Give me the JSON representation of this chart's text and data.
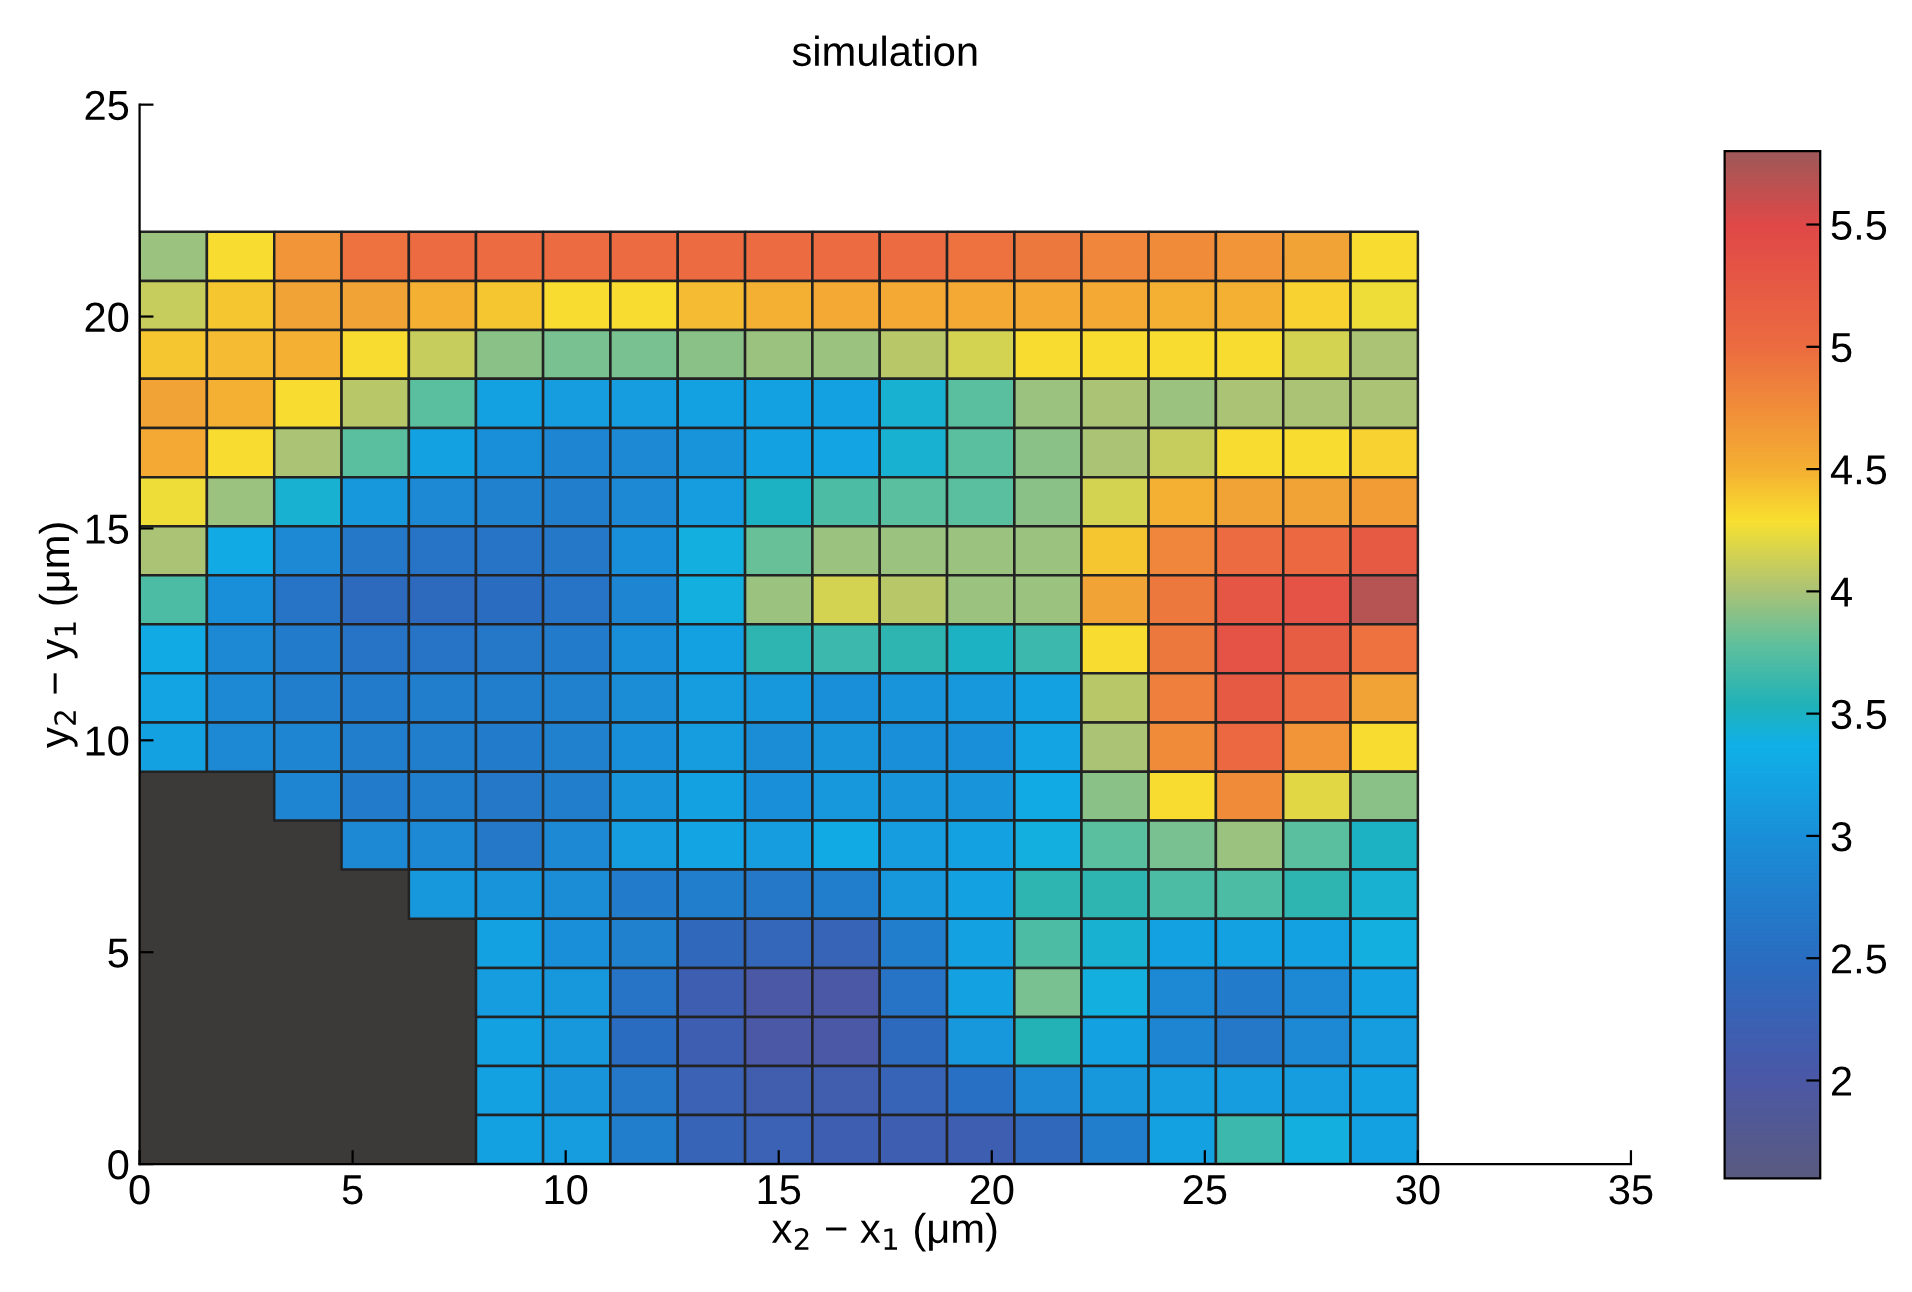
{
  "chart_data": {
    "type": "heatmap",
    "title": "simulation",
    "xlabel": "x$_{2}$ − x$_{1}$ (μm)",
    "ylabel": "y$_{2}$ − y$_{1}$ (μm)",
    "x": [
      0.79,
      2.37,
      3.95,
      5.53,
      7.11,
      8.68,
      10.26,
      11.84,
      13.42,
      15,
      16.58,
      18.16,
      19.74,
      21.32,
      22.89,
      24.47,
      26.05,
      27.63,
      29.21
    ],
    "y": [
      21.42,
      20.26,
      19.11,
      17.95,
      16.79,
      15.63,
      14.47,
      13.32,
      12.16,
      11,
      9.84,
      8.68,
      7.53,
      6.37,
      5.21,
      4.05,
      2.89,
      1.74,
      0.58
    ],
    "xlim": [
      0,
      35
    ],
    "xticks": [
      0,
      5,
      10,
      15,
      20,
      25,
      30,
      35
    ],
    "ylim": [
      0,
      25
    ],
    "yticks": [
      0,
      5,
      10,
      15,
      20,
      25
    ],
    "clim": [
      1.6,
      5.8
    ],
    "cticks": [
      2,
      2.5,
      3,
      3.5,
      4,
      4.5,
      5,
      5.5
    ],
    "cells": [
      [
        3.95,
        4.3,
        4.7,
        4.95,
        5.0,
        5.0,
        5.0,
        5.0,
        5.0,
        5.0,
        5.0,
        5.0,
        4.95,
        4.9,
        4.8,
        4.75,
        4.7,
        4.6,
        4.3
      ],
      [
        4.1,
        4.4,
        4.6,
        4.6,
        4.5,
        4.4,
        4.3,
        4.3,
        4.45,
        4.5,
        4.55,
        4.55,
        4.55,
        4.55,
        4.55,
        4.5,
        4.5,
        4.35,
        4.25
      ],
      [
        4.4,
        4.45,
        4.5,
        4.3,
        4.1,
        3.9,
        3.85,
        3.85,
        3.9,
        3.95,
        3.95,
        4.05,
        4.15,
        4.3,
        4.3,
        4.3,
        4.3,
        4.15,
        4.0
      ],
      [
        4.6,
        4.5,
        4.3,
        4.05,
        3.75,
        3.2,
        3.15,
        3.15,
        3.2,
        3.2,
        3.2,
        3.45,
        3.75,
        3.95,
        4.0,
        3.95,
        4.0,
        4.0,
        4.0
      ],
      [
        4.55,
        4.3,
        4.0,
        3.75,
        3.2,
        3.0,
        2.85,
        2.9,
        3.05,
        3.2,
        3.25,
        3.45,
        3.75,
        3.9,
        4.0,
        4.1,
        4.3,
        4.3,
        4.35
      ],
      [
        4.25,
        3.95,
        3.45,
        3.1,
        2.9,
        2.8,
        2.75,
        2.9,
        3.15,
        3.5,
        3.7,
        3.75,
        3.75,
        3.9,
        4.15,
        4.5,
        4.6,
        4.6,
        4.65
      ],
      [
        4.0,
        3.3,
        2.9,
        2.65,
        2.6,
        2.6,
        2.65,
        3.0,
        3.4,
        3.8,
        3.95,
        3.95,
        3.95,
        3.95,
        4.4,
        4.8,
        5.0,
        5.05,
        5.25
      ],
      [
        3.7,
        3.0,
        2.6,
        2.45,
        2.45,
        2.5,
        2.6,
        2.85,
        3.4,
        3.95,
        4.15,
        4.05,
        3.95,
        3.95,
        4.6,
        4.9,
        5.3,
        5.35,
        5.7
      ],
      [
        3.3,
        2.9,
        2.7,
        2.6,
        2.6,
        2.65,
        2.7,
        3.0,
        3.2,
        3.6,
        3.65,
        3.6,
        3.5,
        3.65,
        4.3,
        4.9,
        5.35,
        5.2,
        4.95
      ],
      [
        3.25,
        2.9,
        2.75,
        2.7,
        2.75,
        2.75,
        2.8,
        2.95,
        3.15,
        3.1,
        3.0,
        3.05,
        3.1,
        3.2,
        4.05,
        4.85,
        5.25,
        5.0,
        4.6
      ],
      [
        3.2,
        2.9,
        2.85,
        2.75,
        2.75,
        2.7,
        2.8,
        3.0,
        3.15,
        2.95,
        3.05,
        3.0,
        3.0,
        3.25,
        4.0,
        4.75,
        5.05,
        4.7,
        4.3
      ],
      [
        null,
        null,
        2.85,
        2.7,
        2.75,
        2.65,
        2.75,
        3.05,
        3.2,
        3.0,
        3.1,
        3.05,
        3.05,
        3.3,
        3.9,
        4.3,
        4.75,
        4.2,
        3.9
      ],
      [
        null,
        null,
        null,
        2.9,
        2.9,
        2.65,
        2.9,
        3.15,
        3.25,
        3.15,
        3.3,
        3.15,
        3.2,
        3.4,
        3.75,
        3.85,
        3.95,
        3.75,
        3.5
      ],
      [
        null,
        null,
        null,
        null,
        3.1,
        3.05,
        2.95,
        2.7,
        2.75,
        2.65,
        2.75,
        3.1,
        3.2,
        3.6,
        3.6,
        3.7,
        3.7,
        3.6,
        3.45
      ],
      [
        null,
        null,
        null,
        null,
        null,
        3.2,
        3.0,
        2.8,
        2.4,
        2.35,
        2.3,
        2.75,
        3.2,
        3.7,
        3.45,
        3.2,
        3.2,
        3.2,
        3.4
      ],
      [
        null,
        null,
        null,
        null,
        null,
        3.15,
        3.1,
        2.6,
        2.2,
        2.0,
        2.0,
        2.6,
        3.2,
        3.85,
        3.4,
        2.9,
        2.7,
        2.9,
        3.2
      ],
      [
        null,
        null,
        null,
        null,
        null,
        3.2,
        3.1,
        2.5,
        2.2,
        2.0,
        2.0,
        2.45,
        3.1,
        3.55,
        3.2,
        2.85,
        2.65,
        2.9,
        3.15
      ],
      [
        null,
        null,
        null,
        null,
        null,
        3.2,
        3.05,
        2.65,
        2.25,
        2.15,
        2.15,
        2.3,
        2.55,
        2.9,
        3.1,
        3.15,
        3.15,
        3.15,
        3.2
      ],
      [
        null,
        null,
        null,
        null,
        null,
        3.2,
        3.15,
        2.75,
        2.3,
        2.25,
        2.2,
        2.2,
        2.2,
        2.4,
        2.75,
        3.2,
        3.65,
        3.4,
        3.2
      ]
    ]
  }
}
